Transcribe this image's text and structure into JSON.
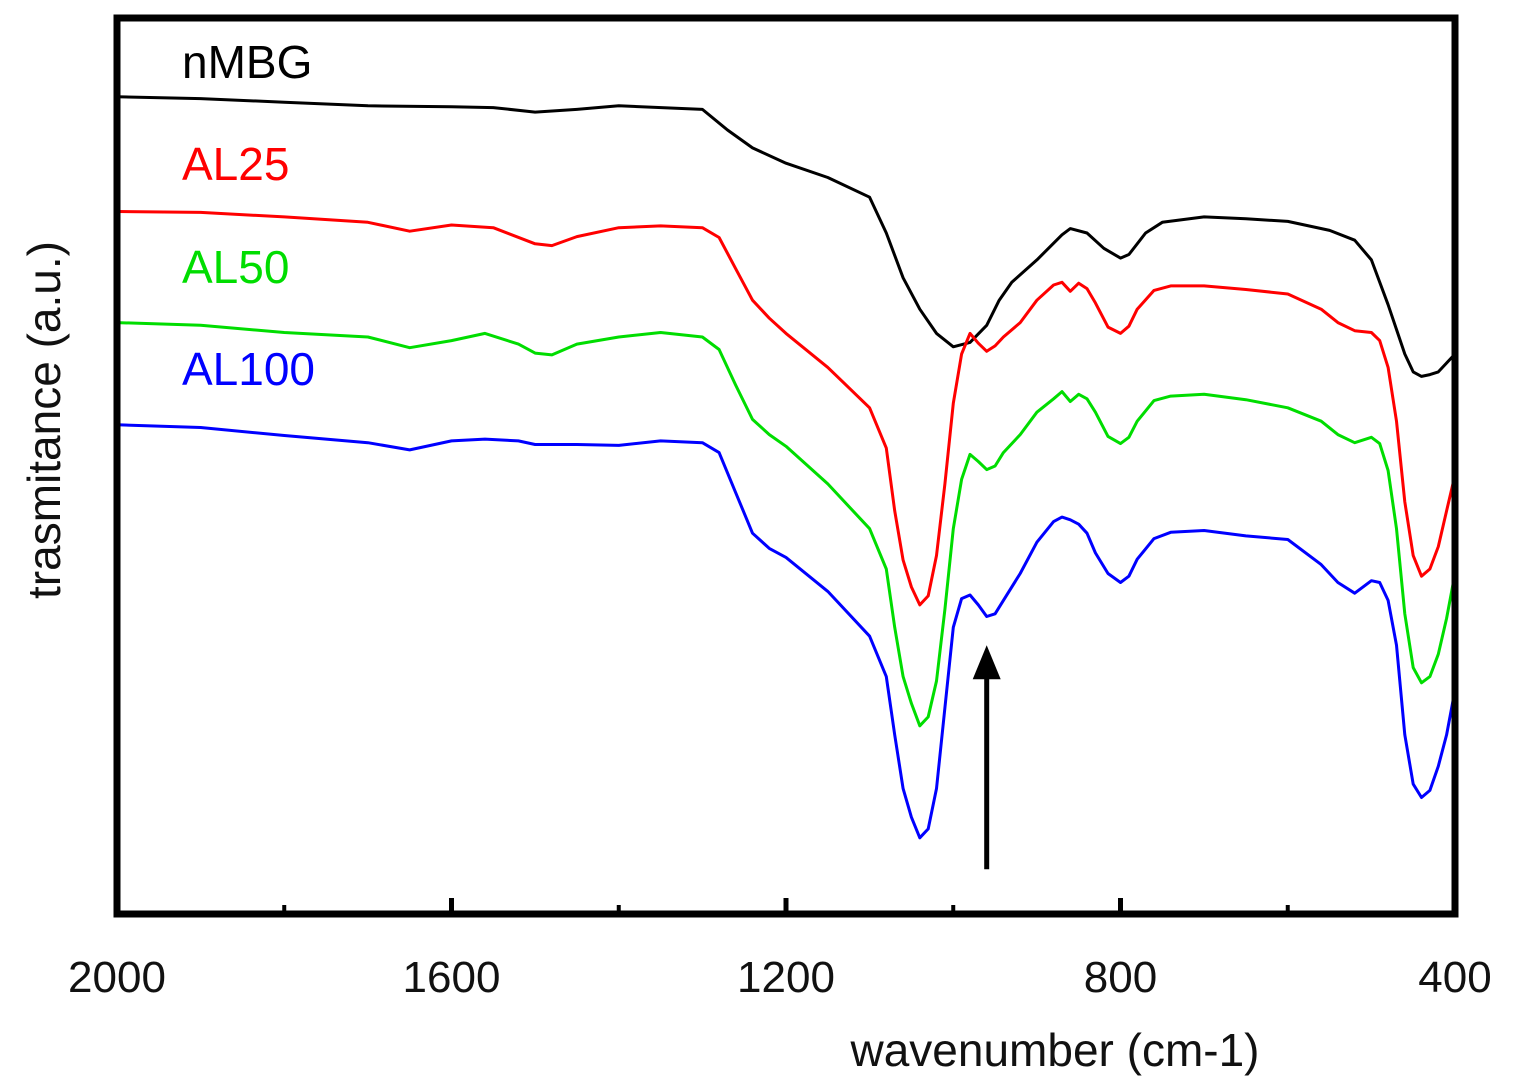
{
  "chart_data": {
    "type": "line",
    "title": "",
    "xlabel": "wavenumber (cm-1)",
    "ylabel": "trasmitance (a.u.)",
    "xlim": [
      2000,
      400
    ],
    "ylim": [
      0,
      100
    ],
    "x_ticks": [
      "2000",
      "1600",
      "1200",
      "800",
      "400"
    ],
    "x_tick_values": [
      2000,
      1600,
      1200,
      800,
      400
    ],
    "x_minor_ticks": [
      1800,
      1400,
      1000,
      600
    ],
    "series": [
      {
        "name": "nMBG",
        "color": "#000000",
        "points": [
          [
            2000,
            91.2
          ],
          [
            1900,
            91
          ],
          [
            1800,
            90.6
          ],
          [
            1700,
            90.2
          ],
          [
            1600,
            90.1
          ],
          [
            1550,
            90
          ],
          [
            1500,
            89.5
          ],
          [
            1450,
            89.8
          ],
          [
            1400,
            90.2
          ],
          [
            1300,
            89.8
          ],
          [
            1270,
            87.5
          ],
          [
            1240,
            85.5
          ],
          [
            1200,
            83.8
          ],
          [
            1150,
            82.2
          ],
          [
            1100,
            80
          ],
          [
            1080,
            76
          ],
          [
            1060,
            71
          ],
          [
            1040,
            67.5
          ],
          [
            1020,
            64.8
          ],
          [
            1000,
            63.3
          ],
          [
            980,
            63.8
          ],
          [
            960,
            65.7
          ],
          [
            945,
            68.5
          ],
          [
            930,
            70.5
          ],
          [
            900,
            73
          ],
          [
            870,
            75.8
          ],
          [
            860,
            76.5
          ],
          [
            840,
            76
          ],
          [
            820,
            74.3
          ],
          [
            800,
            73.2
          ],
          [
            790,
            73.6
          ],
          [
            770,
            76
          ],
          [
            750,
            77.2
          ],
          [
            700,
            77.8
          ],
          [
            650,
            77.6
          ],
          [
            600,
            77.3
          ],
          [
            550,
            76.3
          ],
          [
            520,
            75.2
          ],
          [
            500,
            73
          ],
          [
            480,
            68
          ],
          [
            460,
            62.5
          ],
          [
            450,
            60.5
          ],
          [
            440,
            60
          ],
          [
            430,
            60.2
          ],
          [
            420,
            60.5
          ],
          [
            410,
            61.5
          ],
          [
            400,
            62.5
          ]
        ]
      },
      {
        "name": "AL25",
        "color": "#ff0000",
        "points": [
          [
            2000,
            78.4
          ],
          [
            1900,
            78.3
          ],
          [
            1800,
            77.8
          ],
          [
            1700,
            77.2
          ],
          [
            1650,
            76.2
          ],
          [
            1600,
            76.9
          ],
          [
            1550,
            76.6
          ],
          [
            1500,
            74.8
          ],
          [
            1480,
            74.6
          ],
          [
            1450,
            75.6
          ],
          [
            1400,
            76.6
          ],
          [
            1350,
            76.8
          ],
          [
            1300,
            76.6
          ],
          [
            1280,
            75.5
          ],
          [
            1260,
            72
          ],
          [
            1240,
            68.5
          ],
          [
            1220,
            66.5
          ],
          [
            1200,
            64.8
          ],
          [
            1150,
            61
          ],
          [
            1100,
            56.5
          ],
          [
            1080,
            52
          ],
          [
            1070,
            45
          ],
          [
            1060,
            39.5
          ],
          [
            1050,
            36.5
          ],
          [
            1040,
            34.5
          ],
          [
            1030,
            35.5
          ],
          [
            1020,
            40
          ],
          [
            1010,
            48
          ],
          [
            1000,
            57
          ],
          [
            990,
            62.5
          ],
          [
            980,
            64.8
          ],
          [
            970,
            63.7
          ],
          [
            960,
            62.8
          ],
          [
            950,
            63.4
          ],
          [
            940,
            64.4
          ],
          [
            920,
            66
          ],
          [
            900,
            68.5
          ],
          [
            880,
            70.2
          ],
          [
            870,
            70.5
          ],
          [
            860,
            69.5
          ],
          [
            850,
            70.4
          ],
          [
            840,
            69.8
          ],
          [
            830,
            68.2
          ],
          [
            815,
            65.5
          ],
          [
            800,
            64.8
          ],
          [
            790,
            65.6
          ],
          [
            780,
            67.5
          ],
          [
            760,
            69.6
          ],
          [
            740,
            70.1
          ],
          [
            700,
            70.1
          ],
          [
            650,
            69.7
          ],
          [
            600,
            69.2
          ],
          [
            560,
            67.5
          ],
          [
            540,
            66
          ],
          [
            520,
            65.1
          ],
          [
            500,
            64.9
          ],
          [
            490,
            64
          ],
          [
            480,
            61
          ],
          [
            470,
            55
          ],
          [
            460,
            46
          ],
          [
            450,
            40
          ],
          [
            440,
            37.7
          ],
          [
            430,
            38.5
          ],
          [
            420,
            41
          ],
          [
            410,
            45
          ],
          [
            400,
            49
          ]
        ]
      },
      {
        "name": "AL50",
        "color": "#00dd00",
        "points": [
          [
            2000,
            66
          ],
          [
            1900,
            65.7
          ],
          [
            1800,
            64.9
          ],
          [
            1700,
            64.4
          ],
          [
            1650,
            63.2
          ],
          [
            1600,
            64
          ],
          [
            1560,
            64.8
          ],
          [
            1520,
            63.6
          ],
          [
            1500,
            62.6
          ],
          [
            1480,
            62.4
          ],
          [
            1450,
            63.6
          ],
          [
            1400,
            64.4
          ],
          [
            1350,
            64.9
          ],
          [
            1300,
            64.4
          ],
          [
            1280,
            63
          ],
          [
            1260,
            59
          ],
          [
            1240,
            55.2
          ],
          [
            1220,
            53.5
          ],
          [
            1200,
            52.2
          ],
          [
            1150,
            48
          ],
          [
            1100,
            43
          ],
          [
            1080,
            38.5
          ],
          [
            1070,
            32
          ],
          [
            1060,
            26.5
          ],
          [
            1050,
            23.5
          ],
          [
            1040,
            21
          ],
          [
            1030,
            22
          ],
          [
            1020,
            26
          ],
          [
            1010,
            34
          ],
          [
            1000,
            43
          ],
          [
            990,
            48.5
          ],
          [
            980,
            51.3
          ],
          [
            970,
            50.5
          ],
          [
            960,
            49.6
          ],
          [
            950,
            50
          ],
          [
            940,
            51.5
          ],
          [
            920,
            53.5
          ],
          [
            900,
            56
          ],
          [
            880,
            57.5
          ],
          [
            870,
            58.3
          ],
          [
            860,
            57.2
          ],
          [
            850,
            58
          ],
          [
            840,
            57.5
          ],
          [
            830,
            56
          ],
          [
            815,
            53.3
          ],
          [
            800,
            52.5
          ],
          [
            790,
            53.2
          ],
          [
            780,
            55
          ],
          [
            760,
            57.3
          ],
          [
            740,
            57.8
          ],
          [
            700,
            58
          ],
          [
            650,
            57.4
          ],
          [
            600,
            56.5
          ],
          [
            560,
            55
          ],
          [
            540,
            53.5
          ],
          [
            520,
            52.6
          ],
          [
            500,
            53.2
          ],
          [
            490,
            52.5
          ],
          [
            480,
            49.5
          ],
          [
            470,
            43
          ],
          [
            460,
            33.5
          ],
          [
            450,
            27.5
          ],
          [
            440,
            25.8
          ],
          [
            430,
            26.5
          ],
          [
            420,
            29
          ],
          [
            410,
            33
          ],
          [
            400,
            38
          ]
        ]
      },
      {
        "name": "AL100",
        "color": "#0000ff",
        "points": [
          [
            2000,
            54.6
          ],
          [
            1900,
            54.3
          ],
          [
            1800,
            53.4
          ],
          [
            1700,
            52.6
          ],
          [
            1650,
            51.8
          ],
          [
            1600,
            52.8
          ],
          [
            1560,
            53
          ],
          [
            1520,
            52.8
          ],
          [
            1500,
            52.4
          ],
          [
            1450,
            52.4
          ],
          [
            1400,
            52.3
          ],
          [
            1350,
            52.8
          ],
          [
            1300,
            52.6
          ],
          [
            1280,
            51.5
          ],
          [
            1260,
            47
          ],
          [
            1240,
            42.5
          ],
          [
            1220,
            40.8
          ],
          [
            1200,
            39.8
          ],
          [
            1150,
            36
          ],
          [
            1100,
            31
          ],
          [
            1080,
            26.5
          ],
          [
            1070,
            20
          ],
          [
            1060,
            14
          ],
          [
            1050,
            10.8
          ],
          [
            1040,
            8.5
          ],
          [
            1030,
            9.5
          ],
          [
            1020,
            14
          ],
          [
            1010,
            23
          ],
          [
            1000,
            32
          ],
          [
            990,
            35.2
          ],
          [
            980,
            35.6
          ],
          [
            970,
            34.5
          ],
          [
            960,
            33.2
          ],
          [
            950,
            33.5
          ],
          [
            940,
            35
          ],
          [
            920,
            38
          ],
          [
            900,
            41.5
          ],
          [
            880,
            43.8
          ],
          [
            870,
            44.3
          ],
          [
            860,
            44
          ],
          [
            850,
            43.5
          ],
          [
            840,
            42.5
          ],
          [
            830,
            40.3
          ],
          [
            815,
            38
          ],
          [
            800,
            37
          ],
          [
            790,
            37.7
          ],
          [
            780,
            39.6
          ],
          [
            760,
            41.9
          ],
          [
            740,
            42.6
          ],
          [
            700,
            42.8
          ],
          [
            650,
            42.2
          ],
          [
            600,
            41.8
          ],
          [
            560,
            39
          ],
          [
            540,
            37
          ],
          [
            520,
            35.8
          ],
          [
            500,
            37.2
          ],
          [
            490,
            37
          ],
          [
            480,
            35
          ],
          [
            470,
            30
          ],
          [
            460,
            20
          ],
          [
            450,
            14.5
          ],
          [
            440,
            13
          ],
          [
            430,
            13.8
          ],
          [
            420,
            16.5
          ],
          [
            410,
            20
          ],
          [
            400,
            25
          ]
        ]
      }
    ],
    "legend_position": "top-left",
    "annotation": "upward arrow marking the peak near 960 cm-1",
    "arrow_at_x": 960,
    "arrow_y_range": [
      5,
      30
    ]
  }
}
